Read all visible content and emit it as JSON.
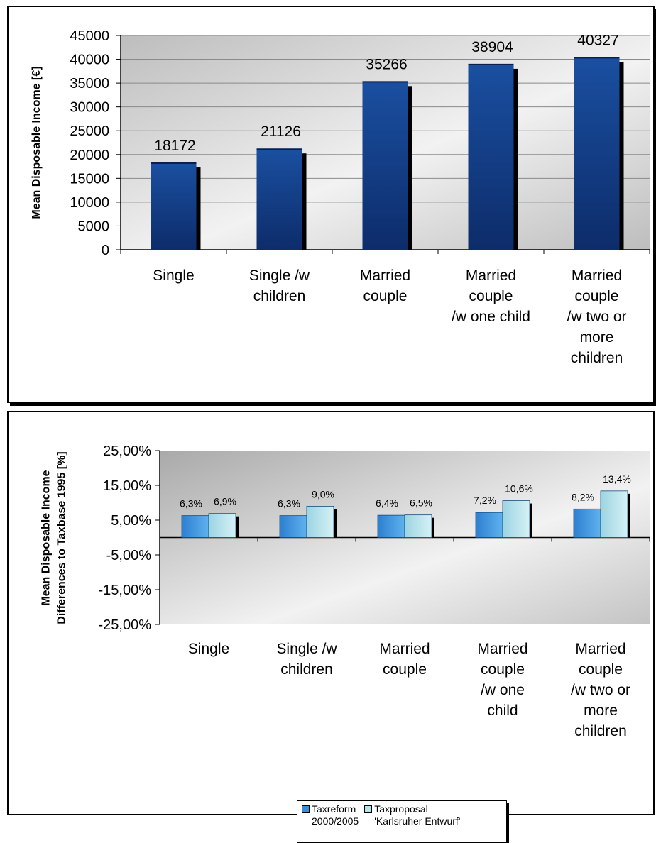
{
  "chart_data": [
    {
      "type": "bar",
      "categories": [
        "Single",
        "Single /w\nchildren",
        "Married\ncouple",
        "Married\ncouple\n/w one child",
        "Married\ncouple\n/w two or\nmore\nchildren"
      ],
      "values": [
        18172,
        21126,
        35266,
        38904,
        40327
      ],
      "data_labels": [
        "18172",
        "21126",
        "35266",
        "38904",
        "40327"
      ],
      "ylabel": "Mean Disposable Income [€]",
      "ylim": [
        0,
        45000
      ],
      "yticks": [
        "0",
        "5000",
        "10000",
        "15000",
        "20000",
        "25000",
        "30000",
        "35000",
        "40000",
        "45000"
      ],
      "ytick_values": [
        0,
        5000,
        10000,
        15000,
        20000,
        25000,
        30000,
        35000,
        40000,
        45000
      ],
      "grid": true,
      "legend": "none",
      "colors": {
        "bar": "#1a4fa0",
        "bar_dark": "#0f3275"
      }
    },
    {
      "type": "bar",
      "categories": [
        "Single",
        "Single /w\nchildren",
        "Married\ncouple",
        "Married\ncouple\n/w one\nchild",
        "Married\ncouple\n/w two or\nmore\nchildren"
      ],
      "series": [
        {
          "name": "Taxreform\n2000/2005",
          "values": [
            6.3,
            6.3,
            6.4,
            7.2,
            8.2
          ],
          "data_labels": [
            "6,3%",
            "6,3%",
            "6,4%",
            "7,2%",
            "8,2%"
          ]
        },
        {
          "name": "Taxproposal\n'Karlsruher Entwurf'",
          "values": [
            6.9,
            9.0,
            6.5,
            10.6,
            13.4
          ],
          "data_labels": [
            "6,9%",
            "9,0%",
            "6,5%",
            "10,6%",
            "13,4%"
          ]
        }
      ],
      "ylabel": "Mean Disposable Income\nDifferences to Taxbase 1995 [%]",
      "ylim": [
        -25,
        25
      ],
      "yticks": [
        "-25,00%",
        "-15,00%",
        "-5,00%",
        "5,00%",
        "15,00%",
        "25,00%"
      ],
      "ytick_values": [
        -25,
        -15,
        -5,
        5,
        15,
        25
      ],
      "grid": false,
      "legend": "bottom-center",
      "colors": {
        "series1": "#3a8fd8",
        "series2": "#b8e4ec"
      }
    }
  ]
}
